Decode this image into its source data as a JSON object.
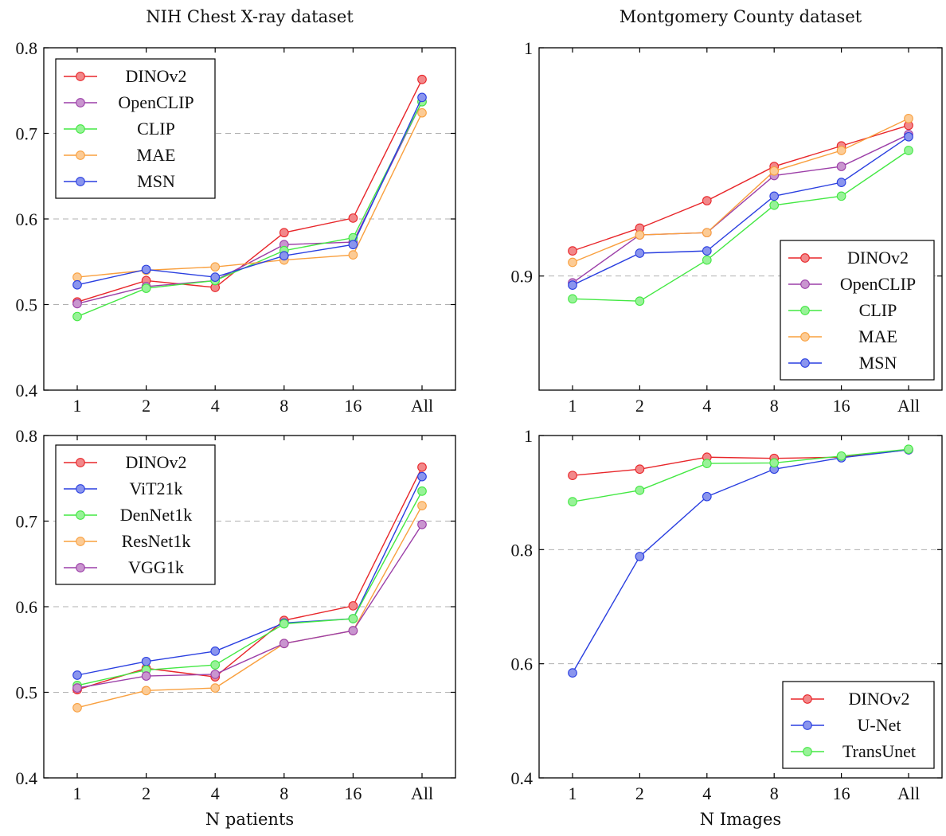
{
  "chart_data": [
    {
      "type": "line",
      "title": "NIH Chest X-ray dataset",
      "xlabel": "",
      "ylabel": "",
      "categories": [
        "1",
        "2",
        "4",
        "8",
        "16",
        "All"
      ],
      "ylim": [
        0.4,
        0.8
      ],
      "yticks": [
        "0.4",
        "0.5",
        "0.6",
        "0.7",
        "0.8"
      ],
      "ytick_values": [
        0.4,
        0.5,
        0.6,
        0.7,
        0.8
      ],
      "grid": "horizontal-dashed",
      "legend_position": "top-left",
      "series": [
        {
          "name": "DINOv2",
          "color": "#e8262a",
          "values": [
            0.503,
            0.528,
            0.52,
            0.584,
            0.601,
            0.763
          ]
        },
        {
          "name": "OpenCLIP",
          "color": "#9c3fa8",
          "values": [
            0.501,
            0.521,
            0.528,
            0.57,
            0.573,
            0.737
          ]
        },
        {
          "name": "CLIP",
          "color": "#43e843",
          "values": [
            0.486,
            0.519,
            0.528,
            0.563,
            0.578,
            0.737
          ]
        },
        {
          "name": "MAE",
          "color": "#f9a03f",
          "values": [
            0.532,
            0.54,
            0.544,
            0.552,
            0.558,
            0.724
          ]
        },
        {
          "name": "MSN",
          "color": "#2a3fe0",
          "values": [
            0.523,
            0.541,
            0.532,
            0.557,
            0.57,
            0.742
          ]
        }
      ]
    },
    {
      "type": "line",
      "title": "Montgomery County dataset",
      "xlabel": "",
      "ylabel": "",
      "categories": [
        "1",
        "2",
        "4",
        "8",
        "16",
        "All"
      ],
      "ylim": [
        0.85,
        1.0
      ],
      "yticks": [
        "0.9",
        "1"
      ],
      "ytick_values": [
        0.9,
        1.0
      ],
      "grid": "horizontal-dashed",
      "legend_position": "bottom-right",
      "series": [
        {
          "name": "DINOv2",
          "color": "#e8262a",
          "values": [
            0.911,
            0.921,
            0.933,
            0.948,
            0.957,
            0.966
          ]
        },
        {
          "name": "OpenCLIP",
          "color": "#9c3fa8",
          "values": [
            0.897,
            0.918,
            0.919,
            0.944,
            0.948,
            0.962
          ]
        },
        {
          "name": "CLIP",
          "color": "#43e843",
          "values": [
            0.89,
            0.889,
            0.907,
            0.931,
            0.935,
            0.955
          ]
        },
        {
          "name": "MAE",
          "color": "#f9a03f",
          "values": [
            0.906,
            0.918,
            0.919,
            0.946,
            0.955,
            0.969
          ]
        },
        {
          "name": "MSN",
          "color": "#2a3fe0",
          "values": [
            0.896,
            0.91,
            0.911,
            0.935,
            0.941,
            0.961
          ]
        }
      ]
    },
    {
      "type": "line",
      "title": "",
      "xlabel": "N patients",
      "ylabel": "",
      "categories": [
        "1",
        "2",
        "4",
        "8",
        "16",
        "All"
      ],
      "ylim": [
        0.4,
        0.8
      ],
      "yticks": [
        "0.4",
        "0.5",
        "0.6",
        "0.7",
        "0.8"
      ],
      "ytick_values": [
        0.4,
        0.5,
        0.6,
        0.7,
        0.8
      ],
      "grid": "horizontal-dashed",
      "legend_position": "top-left",
      "series": [
        {
          "name": "DINOv2",
          "color": "#e8262a",
          "values": [
            0.503,
            0.528,
            0.518,
            0.584,
            0.601,
            0.763
          ]
        },
        {
          "name": "ViT21k",
          "color": "#2a3fe0",
          "values": [
            0.52,
            0.536,
            0.548,
            0.581,
            0.586,
            0.752
          ]
        },
        {
          "name": "DenNet1k",
          "color": "#43e843",
          "values": [
            0.508,
            0.526,
            0.532,
            0.58,
            0.586,
            0.735
          ]
        },
        {
          "name": "ResNet1k",
          "color": "#f9a03f",
          "values": [
            0.482,
            0.502,
            0.505,
            0.557,
            0.572,
            0.718
          ]
        },
        {
          "name": "VGG1k",
          "color": "#9c3fa8",
          "values": [
            0.505,
            0.519,
            0.521,
            0.557,
            0.572,
            0.696
          ]
        }
      ]
    },
    {
      "type": "line",
      "title": "",
      "xlabel": "N Images",
      "ylabel": "",
      "categories": [
        "1",
        "2",
        "4",
        "8",
        "16",
        "All"
      ],
      "ylim": [
        0.4,
        1.0
      ],
      "yticks": [
        "0.4",
        "0.6",
        "0.8",
        "1"
      ],
      "ytick_values": [
        0.4,
        0.6,
        0.8,
        1.0
      ],
      "grid": "horizontal-dashed",
      "legend_position": "bottom-right",
      "series": [
        {
          "name": "DINOv2",
          "color": "#e8262a",
          "values": [
            0.93,
            0.941,
            0.962,
            0.96,
            0.962,
            0.975
          ]
        },
        {
          "name": "U-Net",
          "color": "#2a3fe0",
          "values": [
            0.584,
            0.788,
            0.893,
            0.941,
            0.961,
            0.975
          ]
        },
        {
          "name": "TransUnet",
          "color": "#43e843",
          "values": [
            0.884,
            0.904,
            0.951,
            0.952,
            0.964,
            0.976
          ]
        }
      ]
    }
  ]
}
